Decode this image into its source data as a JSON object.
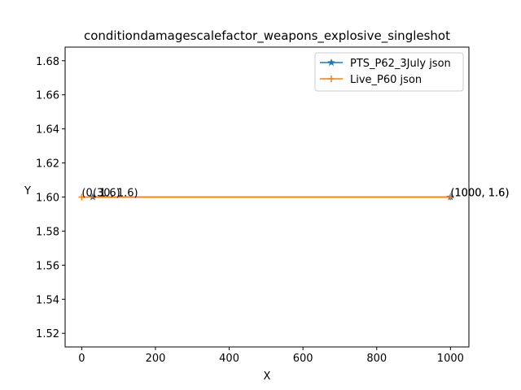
{
  "chart_data": {
    "type": "line",
    "title": "conditiondamagescalefactor_weapons_explosive_singleshot",
    "xlabel": "X",
    "ylabel": "Y",
    "xlim": [
      -45,
      1050
    ],
    "ylim": [
      1.512,
      1.688
    ],
    "xticks": [
      0,
      200,
      400,
      600,
      800,
      1000
    ],
    "yticks": [
      1.52,
      1.54,
      1.56,
      1.58,
      1.6,
      1.62,
      1.64,
      1.66,
      1.68
    ],
    "grid": false,
    "legend_position": "top-right",
    "series": [
      {
        "name": "PTS_P62_3July json",
        "color": "#1f77b4",
        "marker": "star",
        "x": [
          30,
          1000
        ],
        "y": [
          1.6,
          1.6
        ]
      },
      {
        "name": "Live_P60 json",
        "color": "#ff7f0e",
        "marker": "plus",
        "x": [
          0,
          1000
        ],
        "y": [
          1.6,
          1.6
        ]
      }
    ],
    "annotations": [
      {
        "text": "(30, 1.6)",
        "x": 30,
        "y": 1.6
      },
      {
        "text": "(0, 1.6)",
        "x": 0,
        "y": 1.6
      },
      {
        "text": "(1000, 1.6)",
        "x": 1000,
        "y": 1.6
      },
      {
        "text": "(1000, 1.6)",
        "x": 1000,
        "y": 1.6
      }
    ]
  }
}
